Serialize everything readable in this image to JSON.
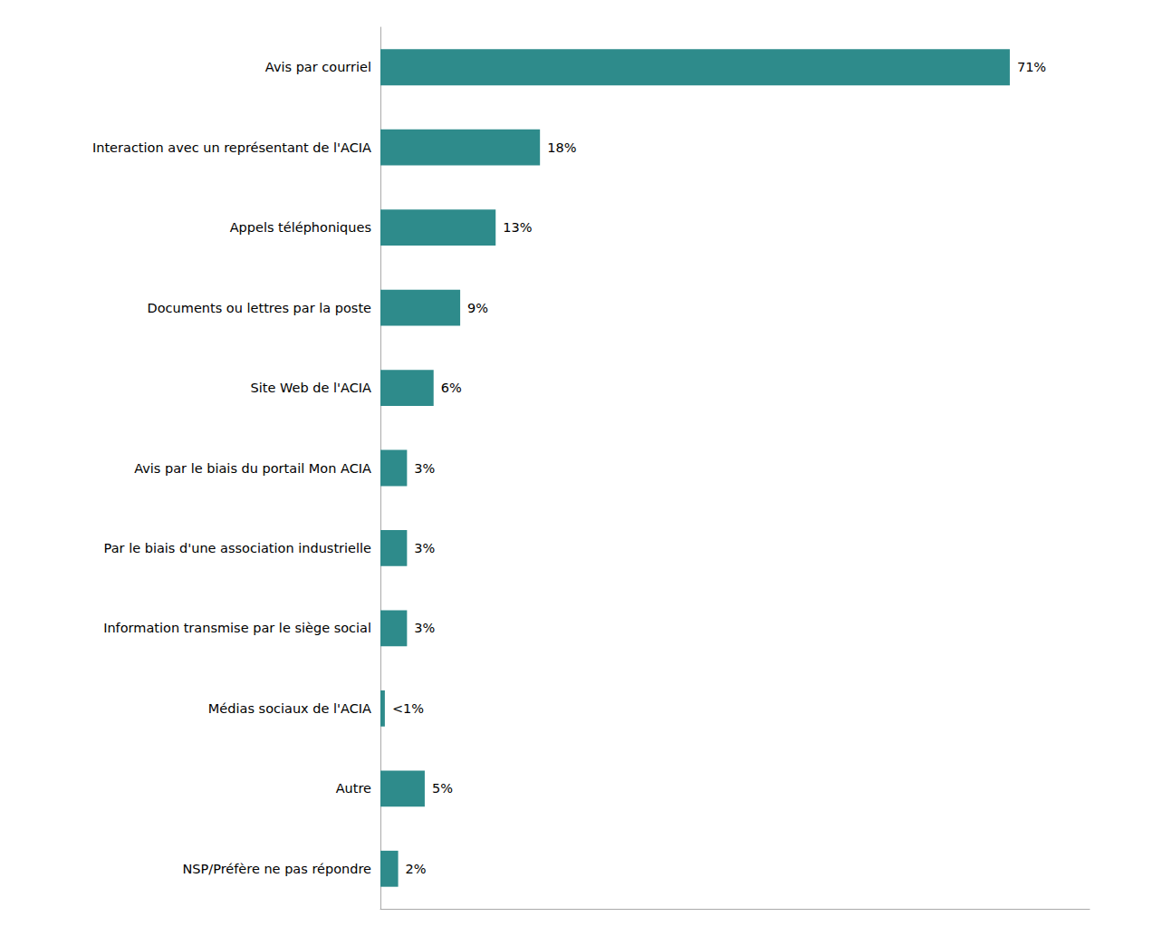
{
  "chart_data": {
    "type": "bar",
    "orientation": "horizontal",
    "categories": [
      "NSP/Préfère ne pas répondre",
      "Autre",
      "Médias sociaux de l'ACIA",
      "Information transmise par le siège social",
      "Par le biais d'une association industrielle",
      "Avis par le biais du portail Mon ACIA",
      "Site Web de l'ACIA",
      "Documents ou lettres par la poste",
      "Appels téléphoniques",
      "Interaction avec un représentant de l'ACIA",
      "Avis par courriel"
    ],
    "values": [
      2,
      5,
      0.5,
      3,
      3,
      3,
      6,
      9,
      13,
      18,
      71
    ],
    "value_labels": [
      "2%",
      "5%",
      "<1%",
      "3%",
      "3%",
      "3%",
      "6%",
      "9%",
      "13%",
      "18%",
      "71%"
    ],
    "data_labels": true,
    "color": "#2e8b8b",
    "xlim": [
      0,
      80
    ],
    "grid": false,
    "tick_labels": "y"
  }
}
